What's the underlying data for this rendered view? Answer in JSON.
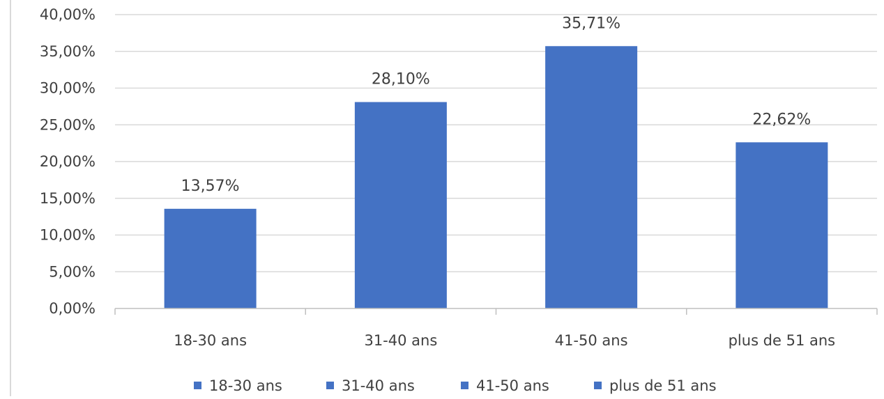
{
  "chart_data": {
    "type": "bar",
    "title": "",
    "xlabel": "",
    "ylabel": "",
    "categories": [
      "18-30 ans",
      "31-40 ans",
      "41-50 ans",
      "plus de 51 ans"
    ],
    "values": [
      13.57,
      28.1,
      35.71,
      22.62
    ],
    "value_labels": [
      "13,57%",
      "28,10%",
      "35,71%",
      "22,62%"
    ],
    "ylim": [
      0,
      40
    ],
    "y_ticks": [
      0,
      5,
      10,
      15,
      20,
      25,
      30,
      35,
      40
    ],
    "y_tick_labels": [
      "0,00%",
      "5,00%",
      "10,00%",
      "15,00%",
      "20,00%",
      "25,00%",
      "30,00%",
      "35,00%",
      "40,00%"
    ],
    "grid": true,
    "legend": {
      "placement": "bottom",
      "entries": [
        "18-30 ans",
        "31-40 ans",
        "41-50 ans",
        "plus de 51 ans"
      ]
    },
    "colors": {
      "bar": "#4472C4",
      "grid": "#d9d9d9",
      "axis": "#bfbfbf",
      "text": "#404040"
    }
  }
}
